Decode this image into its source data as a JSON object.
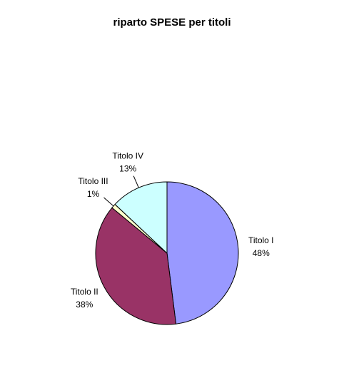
{
  "chart_data": {
    "type": "pie",
    "title": "riparto SPESE per titoli",
    "categories": [
      "Titolo I",
      "Titolo II",
      "Titolo III",
      "Titolo IV"
    ],
    "values": [
      48,
      38,
      1,
      13
    ],
    "value_labels": [
      "48%",
      "38%",
      "1%",
      "13%"
    ],
    "colors": [
      "#9999ff",
      "#993366",
      "#ffffcc",
      "#ccffff"
    ]
  }
}
